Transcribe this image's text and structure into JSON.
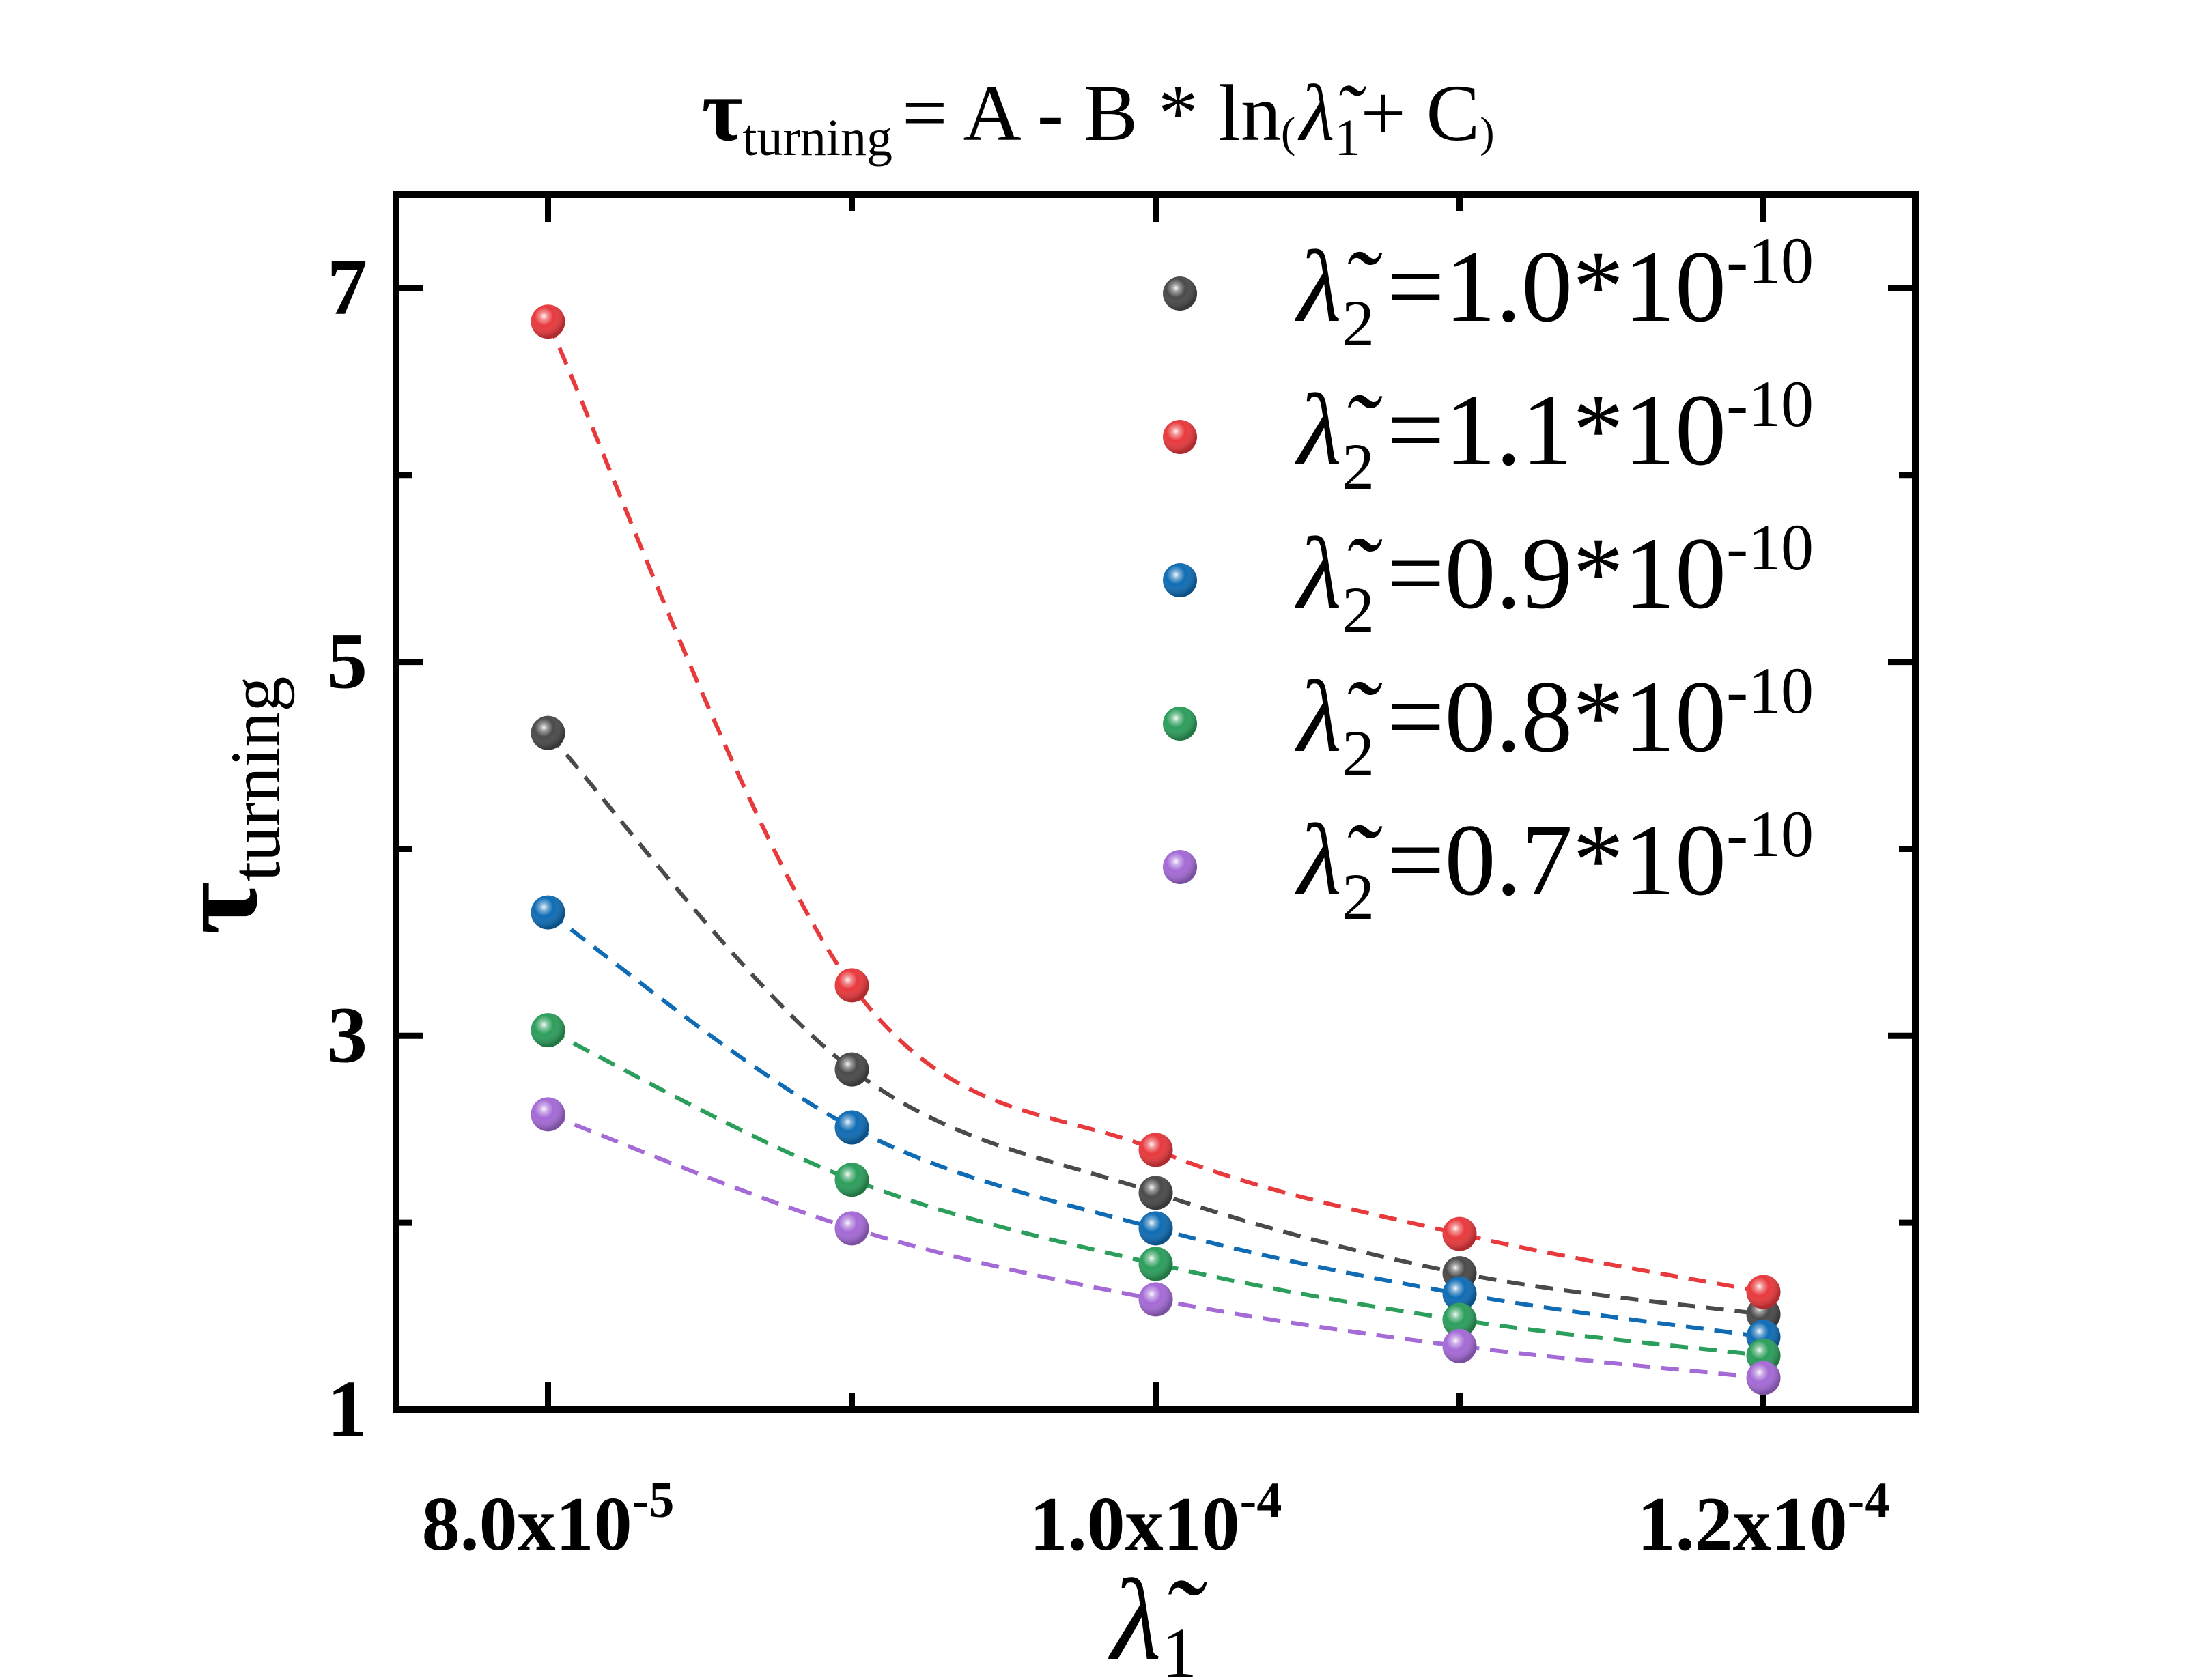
{
  "chart_data": {
    "type": "scatter",
    "title": {
      "tau": "τ",
      "sub": "turning",
      "eq": "= A - B * ln",
      "open": "(",
      "lambda": "λ̃",
      "lsub": "1",
      "plus": "+ C",
      "close": ")"
    },
    "xlabel": {
      "symbol": "λ̃",
      "sub": "1"
    },
    "ylabel": {
      "symbol": "τ",
      "sub": "turning"
    },
    "xlim": [
      7.5e-05,
      0.000125
    ],
    "ylim": [
      1,
      7.5
    ],
    "x_ticks": [
      {
        "value": 8e-05,
        "mant": "8.0x10",
        "exp": "-5"
      },
      {
        "value": 0.0001,
        "mant": "1.0x10",
        "exp": "-4"
      },
      {
        "value": 0.00012,
        "mant": "1.2x10",
        "exp": "-4"
      }
    ],
    "x_minor_ticks": [
      9e-05,
      0.00011
    ],
    "y_ticks": [
      {
        "value": 1,
        "label": "1"
      },
      {
        "value": 3,
        "label": "3"
      },
      {
        "value": 5,
        "label": "5"
      },
      {
        "value": 7,
        "label": "7"
      }
    ],
    "y_minor_ticks": [
      2,
      4,
      6
    ],
    "x": [
      8e-05,
      9e-05,
      0.0001,
      0.00011,
      0.00012
    ],
    "series": [
      {
        "name": "λ̃2 =1.0*10-10",
        "label_lambda": "λ̃",
        "label_sub": "2",
        "label_value": "=1.0*10",
        "label_exp": "-10",
        "color": "#4a4a4a",
        "values": [
          4.62,
          2.82,
          2.16,
          1.73,
          1.51
        ]
      },
      {
        "name": "λ̃2 =1.1*10-10",
        "label_lambda": "λ̃",
        "label_sub": "2",
        "label_value": "=1.1*10",
        "label_exp": "-10",
        "color": "#e8393d",
        "values": [
          6.82,
          3.27,
          2.39,
          1.94,
          1.63
        ]
      },
      {
        "name": "λ̃2 =0.9*10-10",
        "label_lambda": "λ̃",
        "label_sub": "2",
        "label_value": "=0.9*10",
        "label_exp": "-10",
        "color": "#0f6cb4",
        "values": [
          3.66,
          2.51,
          1.97,
          1.62,
          1.39
        ]
      },
      {
        "name": "λ̃2 =0.8*10-10",
        "label_lambda": "λ̃",
        "label_sub": "2",
        "label_value": "=0.8*10",
        "label_exp": "-10",
        "color": "#2c9e5b",
        "values": [
          3.03,
          2.23,
          1.78,
          1.48,
          1.29
        ]
      },
      {
        "name": "λ̃2 =0.7*10-10",
        "label_lambda": "λ̃",
        "label_sub": "2",
        "label_value": "=0.7*10",
        "label_exp": "-10",
        "color": "#a46ad6",
        "values": [
          2.58,
          1.97,
          1.59,
          1.34,
          1.17
        ]
      }
    ],
    "fit": "A - B * ln(x + C)",
    "legend": "top-right",
    "grid": false
  }
}
